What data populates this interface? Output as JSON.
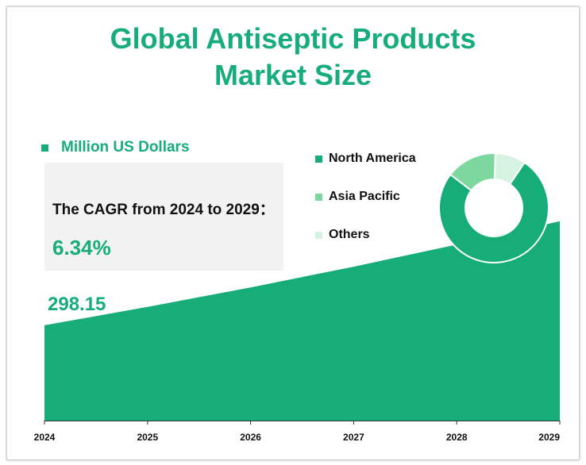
{
  "title_line1": "Global  Antiseptic Products",
  "title_line2": "Market Size",
  "unit_label": "Million US Dollars",
  "cagr": {
    "label": "The CAGR from 2024 to 2029：",
    "value": "6.34%"
  },
  "first_value_label": "298.15",
  "colors": {
    "primary": "#16ad78",
    "secondary": "#7dd89f",
    "tertiary": "#d6f2e1",
    "box": "#f2f2f2"
  },
  "chart_data": [
    {
      "type": "area",
      "x": [
        "2024",
        "2025",
        "2026",
        "2027",
        "2028",
        "2029"
      ],
      "series": [
        {
          "values": [
            298.15,
            317.05,
            337.15,
            358.52,
            381.25,
            405.42
          ]
        }
      ]
    },
    {
      "type": "pie",
      "donut": true,
      "categories": [
        "North America",
        "Asia Pacific",
        "Others"
      ],
      "values": [
        76,
        15,
        9
      ]
    }
  ]
}
